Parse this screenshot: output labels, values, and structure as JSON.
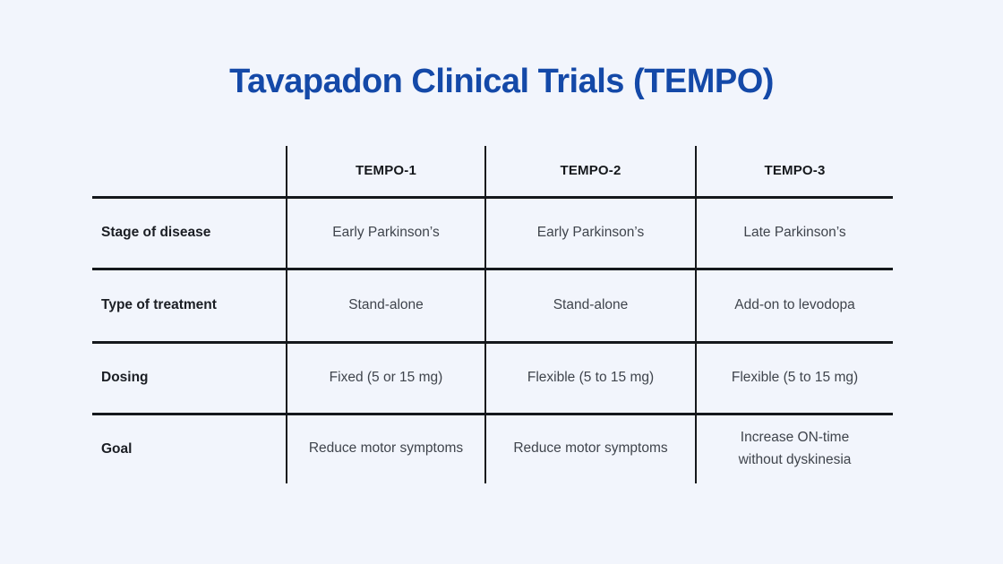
{
  "colors": {
    "background": "#f2f5fc",
    "title_blue": "#1449a8",
    "line": "#15181c",
    "label_text": "#1b1e24",
    "cell_text": "#3f444c"
  },
  "chart_data": {
    "type": "table",
    "title": "Tavapadon Clinical Trials (TEMPO)",
    "columns": [
      "",
      "TEMPO-1",
      "TEMPO-2",
      "TEMPO-3"
    ],
    "rows": [
      {
        "label": "Stage of disease",
        "values": [
          "Early Parkinson’s",
          "Early Parkinson’s",
          "Late Parkinson’s"
        ]
      },
      {
        "label": "Type of treatment",
        "values": [
          "Stand-alone",
          "Stand-alone",
          "Add-on to levodopa"
        ]
      },
      {
        "label": "Dosing",
        "values": [
          "Fixed (5 or 15 mg)",
          "Flexible (5 to 15 mg)",
          "Flexible (5 to 15 mg)"
        ]
      },
      {
        "label": "Goal",
        "values": [
          "Reduce motor symptoms",
          "Reduce motor symptoms",
          "Increase ON-time\nwithout dyskinesia"
        ]
      }
    ],
    "layout_hints": {
      "outer_border": false,
      "grid": "inner lines only, no line below last row"
    }
  }
}
